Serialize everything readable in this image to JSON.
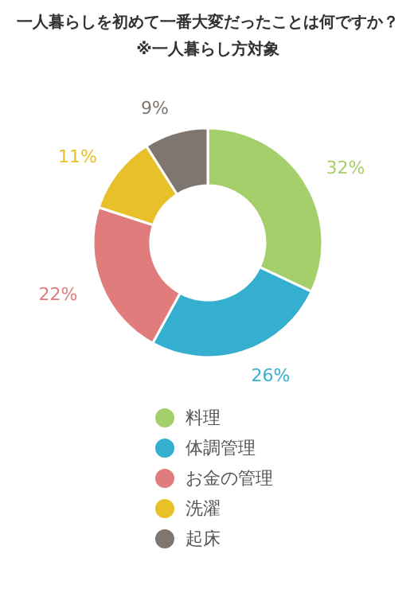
{
  "chart_data": {
    "type": "donut",
    "title": "一人暮らしを初めて一番大変だったことは何ですか？",
    "subtitle": "※一人暮らし方対象",
    "categories": [
      "料理",
      "体調管理",
      "お金の管理",
      "洗濯",
      "起床"
    ],
    "values": [
      32,
      26,
      22,
      11,
      9
    ],
    "value_labels": [
      "32%",
      "26%",
      "22%",
      "11%",
      "9%"
    ],
    "colors": [
      "#a5cf6a",
      "#35afd0",
      "#e07c7c",
      "#e8c12a",
      "#7f7670"
    ],
    "legend": "bottom"
  }
}
